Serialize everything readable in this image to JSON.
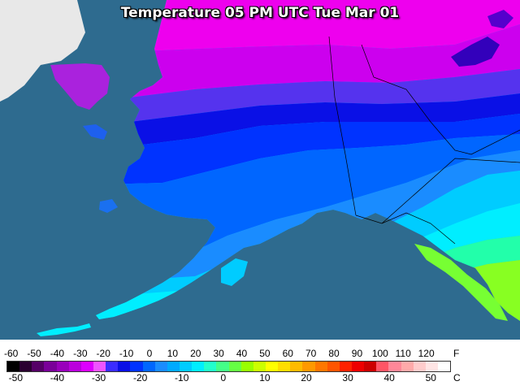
{
  "map": {
    "title": "Temperature 05 PM UTC Tue Mar 01"
  },
  "legend": {
    "fahrenheit_ticks": [
      "-60",
      "-50",
      "-40",
      "-30",
      "-20",
      "-10",
      "0",
      "10",
      "20",
      "30",
      "40",
      "50",
      "60",
      "70",
      "80",
      "90",
      "100",
      "110",
      "120"
    ],
    "celsius_ticks": [
      "-50",
      "-40",
      "-30",
      "-20",
      "-10",
      "0",
      "10",
      "20",
      "30",
      "40",
      "50"
    ],
    "fahrenheit_unit": "F",
    "celsius_unit": "C",
    "colors": [
      "#000000",
      "#2a0030",
      "#550066",
      "#7a0099",
      "#9900bb",
      "#bb00dd",
      "#dd00ff",
      "#ee55ff",
      "#3b2dff",
      "#0a10e6",
      "#0033ff",
      "#0066ff",
      "#1a8cff",
      "#00aaff",
      "#00ccff",
      "#00eeff",
      "#22ffcc",
      "#44ff88",
      "#66ff44",
      "#99ff00",
      "#ccff00",
      "#ffff00",
      "#ffdd00",
      "#ffbb00",
      "#ff9900",
      "#ff7700",
      "#ff5500",
      "#ff2200",
      "#ee0000",
      "#cc0000",
      "#ff5566",
      "#ff8899",
      "#ffaaaa",
      "#ffcccc",
      "#ffe5e5",
      "#ffffff"
    ]
  }
}
